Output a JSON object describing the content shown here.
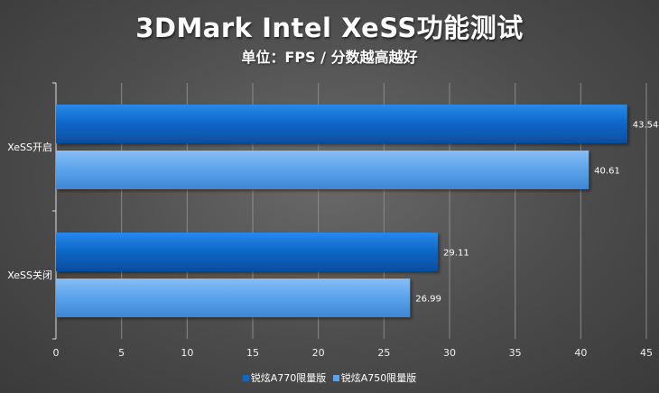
{
  "title": "3DMark Intel XeSS功能测试",
  "subtitle": "单位：FPS / 分数越高越好",
  "chart_data": {
    "type": "bar",
    "orientation": "horizontal",
    "categories": [
      "XeSS开启",
      "XeSS关闭"
    ],
    "series": [
      {
        "name": "锐炫A770限量版",
        "color": "#0a66c8",
        "values": [
          43.54,
          29.11
        ]
      },
      {
        "name": "锐炫A750限量版",
        "color": "#5aa2ea",
        "values": [
          40.61,
          26.99
        ]
      }
    ],
    "xlim": [
      0,
      45
    ],
    "xticks": [
      "0",
      "5",
      "10",
      "15",
      "20",
      "25",
      "30",
      "35",
      "40",
      "45"
    ],
    "grid": true,
    "legend_position": "bottom"
  }
}
